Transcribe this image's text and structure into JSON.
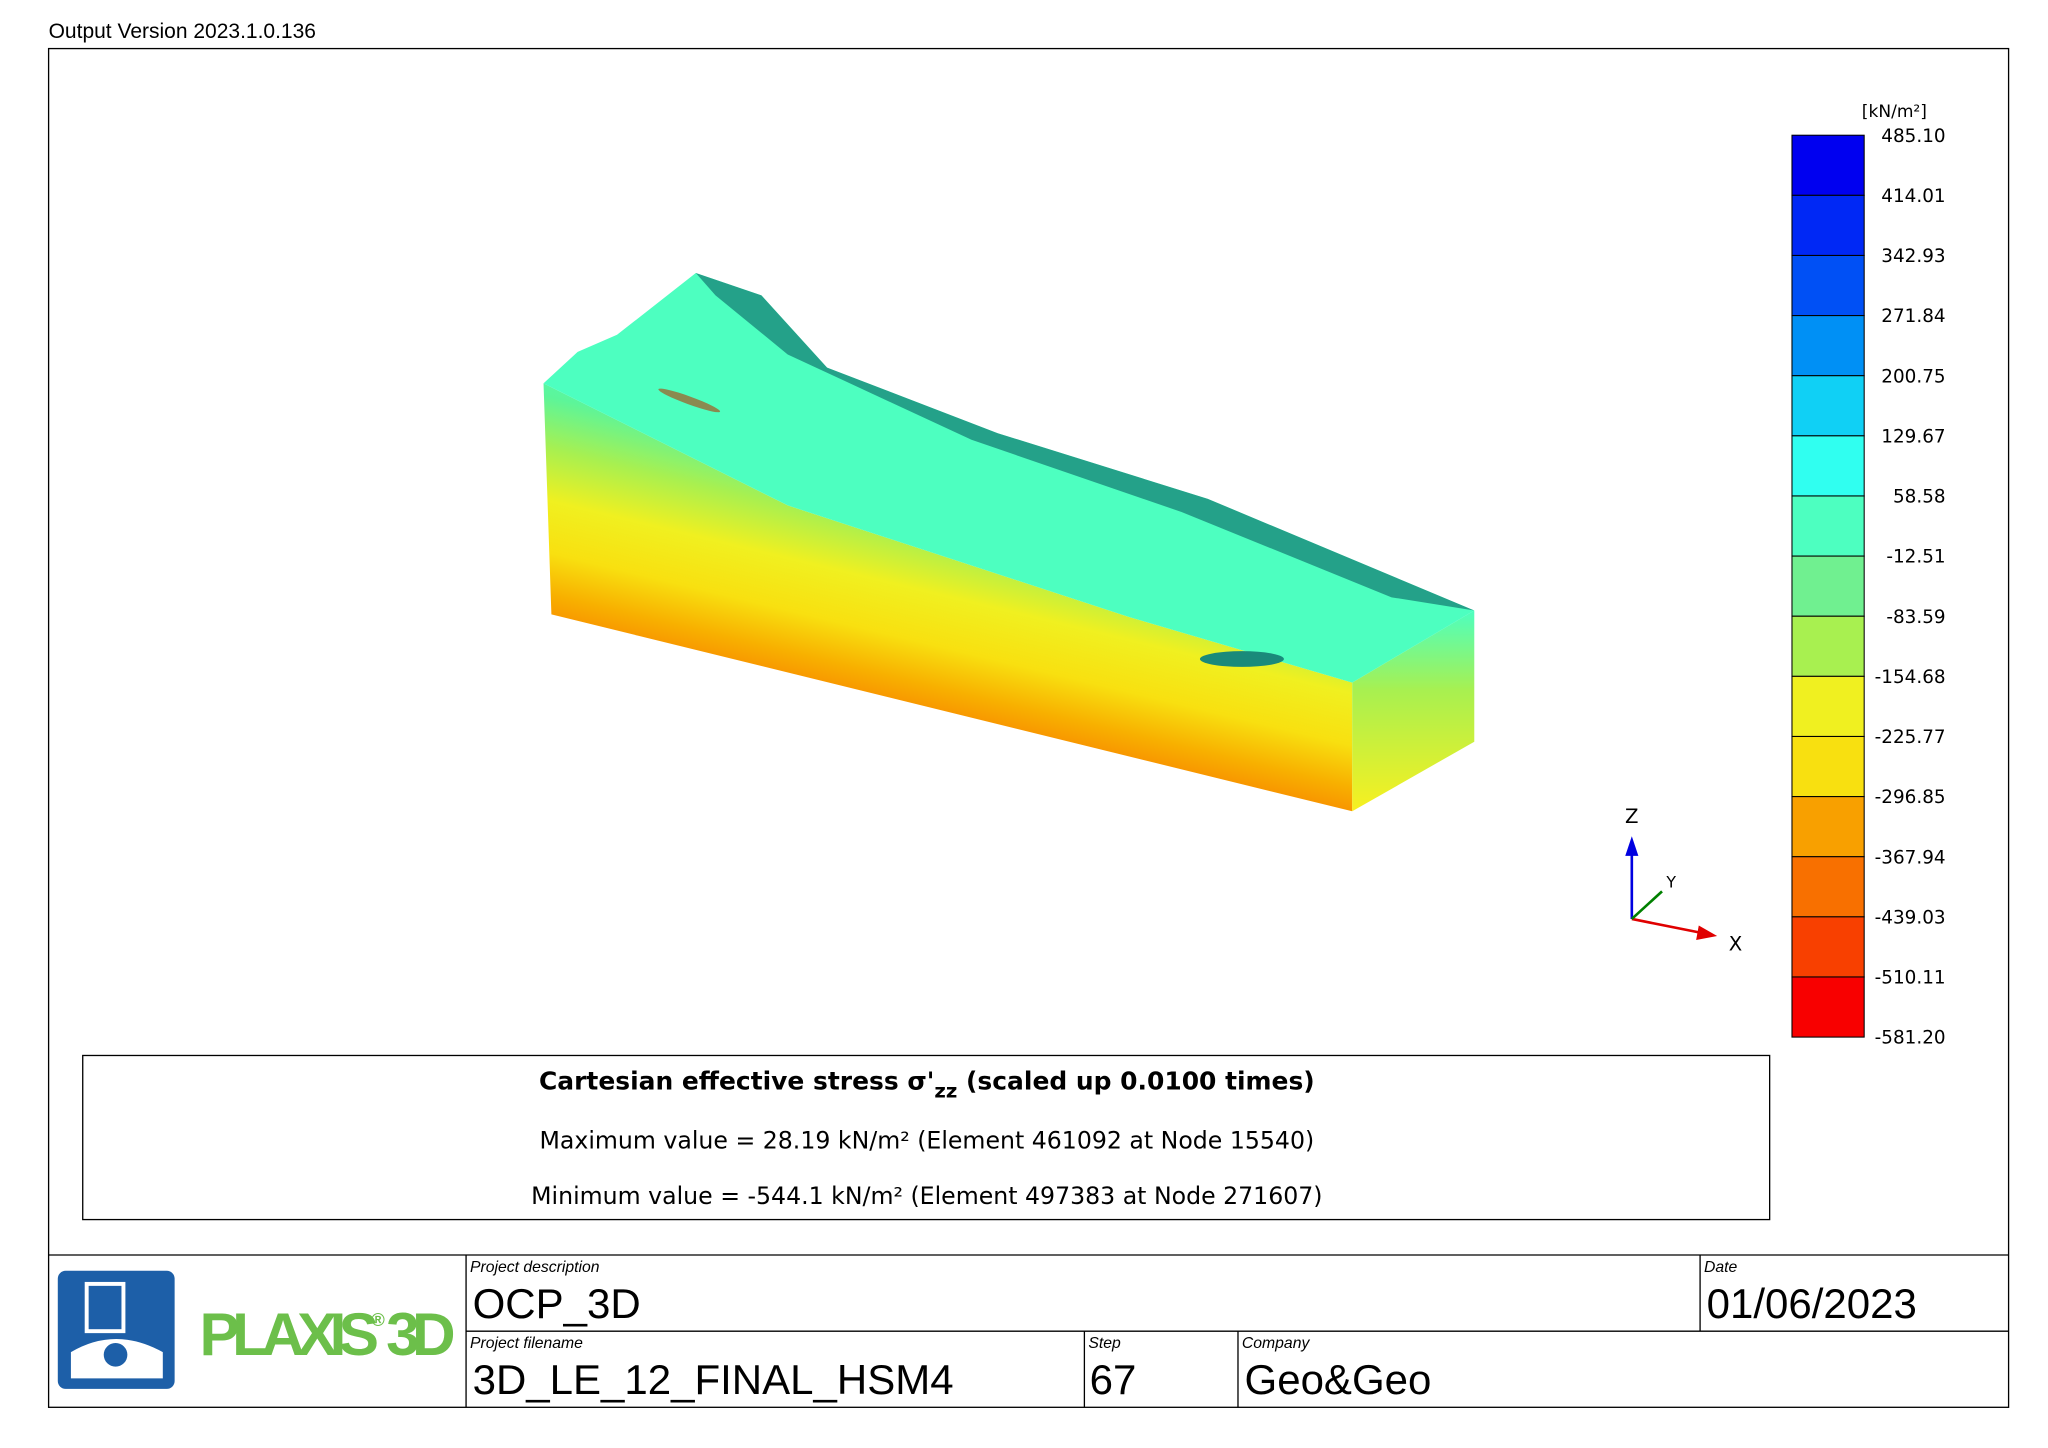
{
  "header": {
    "version": "Output Version 2023.1.0.136"
  },
  "legend": {
    "unit": "[kN/m²]",
    "labels": [
      "485.10",
      "414.01",
      "342.93",
      "271.84",
      "200.75",
      "129.67",
      "58.58",
      "-12.51",
      "-83.59",
      "-154.68",
      "-225.77",
      "-296.85",
      "-367.94",
      "-439.03",
      "-510.11",
      "-581.20"
    ]
  },
  "axes": {
    "z": "Z",
    "y": "Y",
    "x": "X"
  },
  "caption": {
    "title_prefix": "Cartesian effective stress σ'",
    "title_sub": "zz",
    "title_suffix": " (scaled up 0.0100 times)",
    "max": "Maximum value = 28.19 kN/m² (Element 461092 at Node 15540)",
    "min": "Minimum value = -544.1 kN/m² (Element 497383 at Node 271607)"
  },
  "title_block": {
    "brand": "PLAXIS",
    "brand_mark": "®",
    "brand_suffix": " 3D",
    "project_description_label": "Project description",
    "project_description": "OCP_3D",
    "project_filename_label": "Project filename",
    "project_filename": "3D_LE_12_FINAL_HSM4",
    "step_label": "Step",
    "step": "67",
    "company_label": "Company",
    "company": "Geo&Geo",
    "date_label": "Date",
    "date": "01/06/2023"
  }
}
